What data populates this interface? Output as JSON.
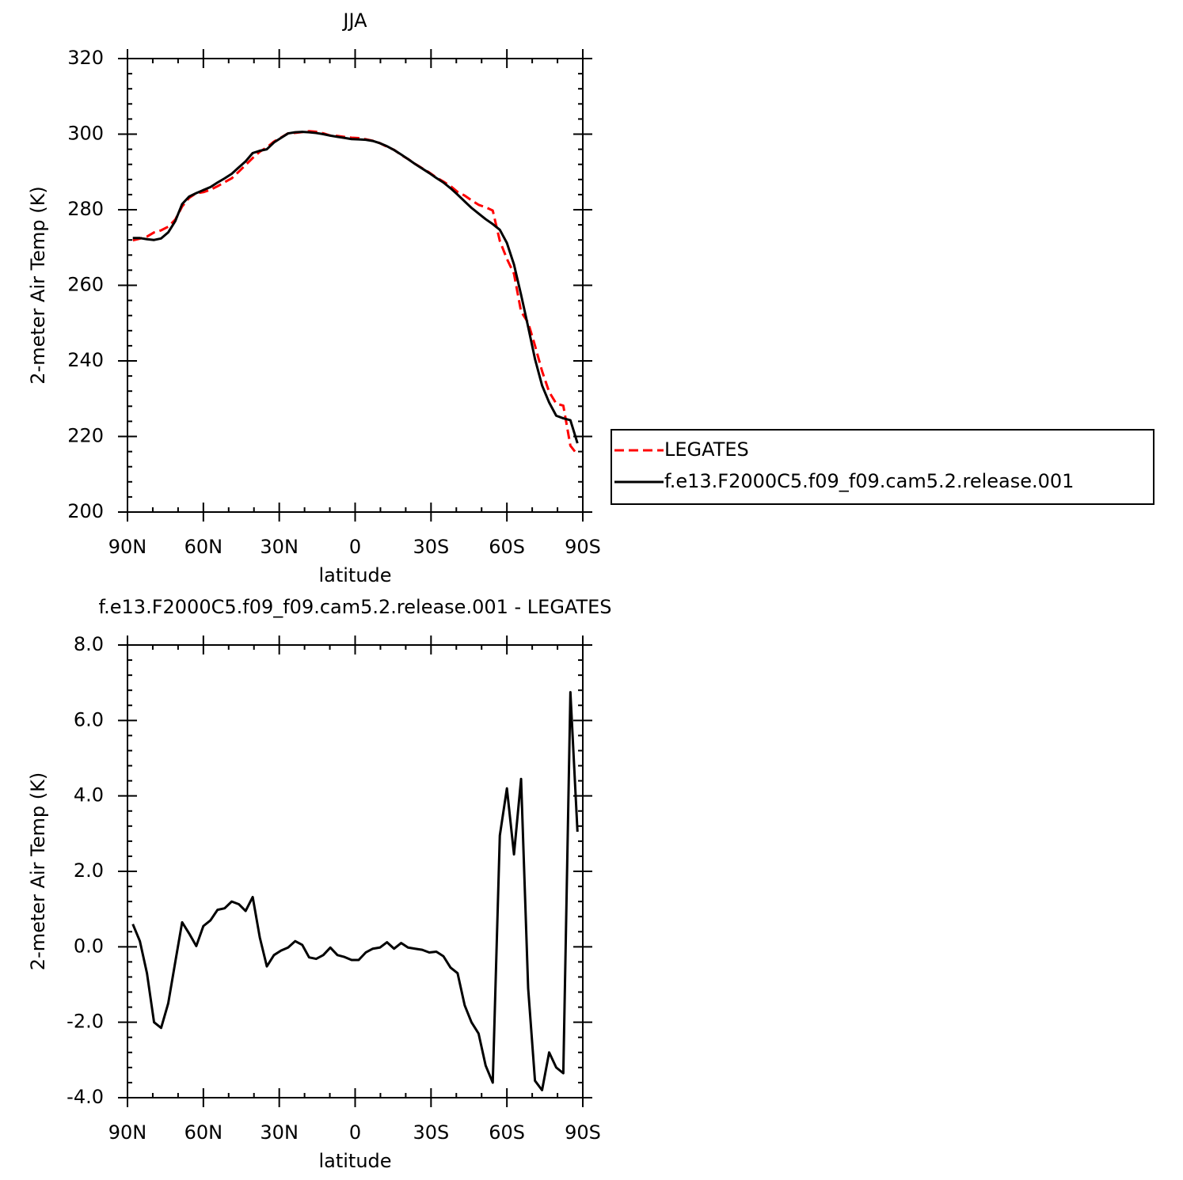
{
  "chart_data": [
    {
      "type": "line",
      "title": "JJA",
      "xlabel": "latitude",
      "ylabel": "2-meter Air Temp (K)",
      "xlim": [
        90,
        -90
      ],
      "xticks": [
        {
          "value": 90,
          "label": "90N"
        },
        {
          "value": 60,
          "label": "60N"
        },
        {
          "value": 30,
          "label": "30N"
        },
        0,
        {
          "value": -30,
          "label": "30S"
        },
        {
          "value": -60,
          "label": "60S"
        },
        {
          "value": -90,
          "label": "90S"
        }
      ],
      "ylim": [
        200,
        320
      ],
      "yticks": [
        200,
        220,
        240,
        260,
        280,
        300,
        320
      ],
      "x": [
        87.9,
        85.1,
        82.3,
        79.5,
        76.7,
        73.9,
        71.1,
        68.4,
        65.6,
        62.8,
        60.0,
        57.2,
        54.4,
        51.6,
        48.8,
        46.0,
        43.3,
        40.5,
        37.7,
        34.9,
        32.1,
        29.3,
        26.5,
        23.7,
        20.9,
        18.2,
        15.4,
        12.6,
        9.8,
        7.0,
        4.2,
        1.4,
        -1.4,
        -4.2,
        -7.0,
        -9.8,
        -12.6,
        -15.4,
        -18.2,
        -20.9,
        -23.7,
        -26.5,
        -29.3,
        -32.1,
        -34.9,
        -37.7,
        -40.5,
        -43.3,
        -46.0,
        -48.8,
        -51.6,
        -54.4,
        -57.2,
        -60.0,
        -62.8,
        -65.6,
        -68.4,
        -71.1,
        -73.9,
        -76.7,
        -79.5,
        -82.3,
        -85.1,
        -87.9
      ],
      "legend": "right",
      "series": [
        {
          "name": "LEGATES",
          "color": "#ff0000",
          "dash": true,
          "values": [
            271.9,
            272.35,
            272.9,
            274.0,
            274.55,
            275.5,
            277.4,
            280.85,
            283.15,
            284.38,
            284.65,
            285.3,
            286.22,
            287.28,
            288.3,
            290.07,
            291.85,
            293.68,
            295.35,
            296.52,
            298.02,
            299.1,
            300.22,
            300.35,
            300.55,
            300.78,
            300.62,
            300.22,
            299.62,
            299.52,
            299.27,
            299.05,
            298.95,
            298.65,
            298.25,
            297.62,
            296.68,
            295.85,
            294.5,
            293.42,
            292.15,
            290.98,
            289.85,
            288.53,
            287.45,
            286.25,
            284.7,
            283.75,
            282.5,
            281.3,
            280.65,
            279.8,
            271.75,
            267.0,
            263.05,
            253.05,
            250.1,
            244.05,
            237.3,
            231.8,
            228.7,
            228.15,
            217.55,
            215.15
          ]
        },
        {
          "name": "f.e13.F2000C5.f09_f09.cam5.2.release.001",
          "color": "#000000",
          "dash": false,
          "values": [
            272.5,
            272.5,
            272.2,
            272.0,
            272.4,
            274.0,
            277.0,
            281.5,
            283.5,
            284.4,
            285.2,
            286.0,
            287.2,
            288.3,
            289.5,
            291.2,
            292.8,
            295.0,
            295.6,
            296.0,
            297.8,
            299.0,
            300.2,
            300.5,
            300.6,
            300.5,
            300.3,
            300.0,
            299.6,
            299.3,
            299.0,
            298.7,
            298.6,
            298.5,
            298.2,
            297.6,
            296.8,
            295.8,
            294.6,
            293.4,
            292.1,
            290.9,
            289.7,
            288.4,
            287.2,
            285.7,
            284.0,
            282.2,
            280.5,
            279.0,
            277.5,
            276.2,
            274.7,
            271.2,
            265.5,
            257.5,
            249.0,
            240.5,
            233.5,
            229.0,
            225.5,
            224.8,
            224.3,
            218.2
          ]
        }
      ]
    },
    {
      "type": "line",
      "title": "f.e13.F2000C5.f09_f09.cam5.2.release.001 - LEGATES",
      "xlabel": "latitude",
      "ylabel": "2-meter Air Temp (K)",
      "xlim": [
        90,
        -90
      ],
      "xticks": [
        {
          "value": 90,
          "label": "90N"
        },
        {
          "value": 60,
          "label": "60N"
        },
        {
          "value": 30,
          "label": "30N"
        },
        0,
        {
          "value": -30,
          "label": "30S"
        },
        {
          "value": -60,
          "label": "60S"
        },
        {
          "value": -90,
          "label": "90S"
        }
      ],
      "ylim": [
        -4,
        8
      ],
      "yticks": [
        {
          "value": -4,
          "label": "-4.0"
        },
        {
          "value": -2,
          "label": "-2.0"
        },
        {
          "value": 0,
          "label": "0.0"
        },
        {
          "value": 2,
          "label": "2.0"
        },
        {
          "value": 4,
          "label": "4.0"
        },
        {
          "value": 6,
          "label": "6.0"
        },
        {
          "value": 8,
          "label": "8.0"
        }
      ],
      "x": [
        87.9,
        85.1,
        82.3,
        79.5,
        76.7,
        73.9,
        71.1,
        68.4,
        65.6,
        62.8,
        60.0,
        57.2,
        54.4,
        51.6,
        48.8,
        46.0,
        43.3,
        40.5,
        37.7,
        34.9,
        32.1,
        29.3,
        26.5,
        23.7,
        20.9,
        18.2,
        15.4,
        12.6,
        9.8,
        7.0,
        4.2,
        1.4,
        -1.4,
        -4.2,
        -7.0,
        -9.8,
        -12.6,
        -15.4,
        -18.2,
        -20.9,
        -23.7,
        -26.5,
        -29.3,
        -32.1,
        -34.9,
        -37.7,
        -40.5,
        -43.3,
        -46.0,
        -48.8,
        -51.6,
        -54.4,
        -57.2,
        -60.0,
        -62.8,
        -65.6,
        -68.4,
        -71.1,
        -73.9,
        -76.7,
        -79.5,
        -82.3,
        -85.1,
        -87.9
      ],
      "series": [
        {
          "color": "#000000",
          "dash": false,
          "values": [
            0.6,
            0.15,
            -0.7,
            -2.0,
            -2.15,
            -1.5,
            -0.4,
            0.65,
            0.35,
            0.02,
            0.55,
            0.7,
            0.98,
            1.02,
            1.2,
            1.13,
            0.95,
            1.32,
            0.25,
            -0.52,
            -0.22,
            -0.1,
            -0.02,
            0.15,
            0.05,
            -0.28,
            -0.32,
            -0.22,
            -0.02,
            -0.22,
            -0.27,
            -0.35,
            -0.35,
            -0.15,
            -0.05,
            -0.02,
            0.12,
            -0.05,
            0.1,
            -0.02,
            -0.05,
            -0.08,
            -0.15,
            -0.13,
            -0.25,
            -0.55,
            -0.7,
            -1.55,
            -2.0,
            -2.3,
            -3.15,
            -3.6,
            2.95,
            4.2,
            2.45,
            4.45,
            -1.1,
            -3.55,
            -3.8,
            -2.8,
            -3.2,
            -3.35,
            6.75,
            3.05
          ]
        }
      ]
    }
  ]
}
